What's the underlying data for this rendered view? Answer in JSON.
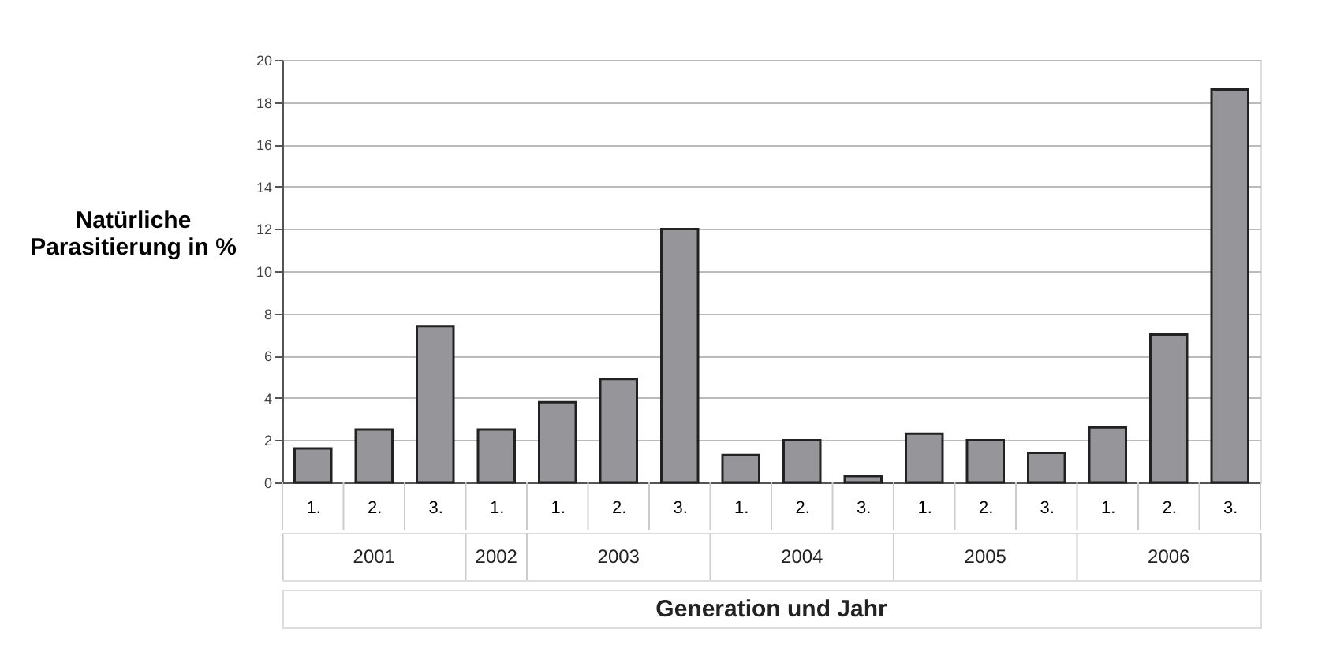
{
  "chart_data": {
    "type": "bar",
    "xlabel": "Generation und Jahr",
    "ylabel": "Natürliche\nParasitierung in %",
    "categories": [
      "1.",
      "2.",
      "3.",
      "1.",
      "1.",
      "2.",
      "3.",
      "1.",
      "2.",
      "3.",
      "1.",
      "2.",
      "3.",
      "1.",
      "2.",
      "3."
    ],
    "annotations": [
      "2001",
      "2002",
      "2003",
      "2004",
      "2005",
      "2006"
    ],
    "values": [
      1.6,
      2.5,
      7.4,
      2.5,
      3.8,
      4.9,
      12.0,
      1.3,
      2.0,
      0.3,
      2.3,
      2.0,
      1.4,
      2.6,
      7.0,
      18.6
    ],
    "color": "#96969a",
    "ylim": [
      0,
      20
    ],
    "yticks": [
      0,
      2,
      4,
      6,
      8,
      10,
      12,
      14,
      16,
      18,
      20
    ],
    "grid": "y"
  }
}
